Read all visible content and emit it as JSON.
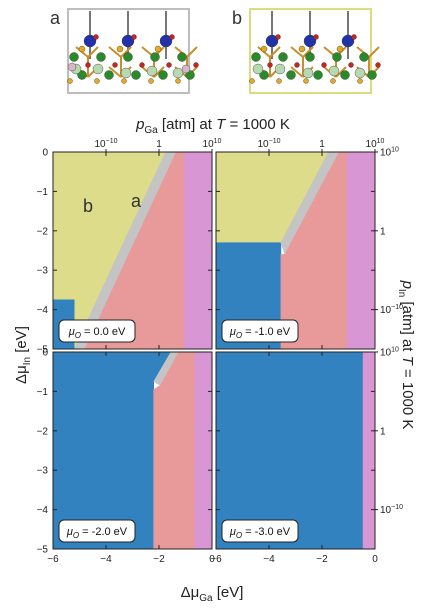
{
  "figure": {
    "inset_labels": [
      "a",
      "b"
    ],
    "region_labels": [
      "b",
      "a"
    ],
    "top_axis_label": {
      "main": "p",
      "sub": "Ga",
      "rest": " [atm] at ",
      "T": "T",
      "tail": " = 1000 K"
    },
    "right_axis_label": {
      "main": "p",
      "sub": "In",
      "rest": " [atm] at ",
      "T": "T",
      "tail": " = 1000 K"
    },
    "left_axis_label": {
      "main": "Δμ",
      "sub": "In",
      "rest": " [eV]"
    },
    "bottom_axis_label": {
      "main": "Δμ",
      "sub": "Ga",
      "rest": " [eV]"
    },
    "top_ticks": [
      {
        "base": "10",
        "exp": "−10",
        "x": -4.0
      },
      {
        "base": "1",
        "exp": "",
        "x": -2.0
      },
      {
        "base": "10",
        "exp": "10",
        "x": 0.0
      }
    ],
    "right_ticks": [
      {
        "base": "10",
        "exp": "10",
        "y": 0.0
      },
      {
        "base": "1",
        "exp": "",
        "y": -2.0
      },
      {
        "base": "10",
        "exp": "−10",
        "y": -4.0
      }
    ]
  },
  "colors": {
    "phase_b": "#dcdc8a",
    "phase_a": "#e89a9a",
    "phase_blue": "#3282c0",
    "phase_grey": "#c4c4c4",
    "phase_pink": "#d896d4"
  },
  "chart_data": {
    "type": "heatmap",
    "xlabel": "ΔμGa [eV]",
    "ylabel": "ΔμIn [eV]",
    "xlim": [
      -6,
      0
    ],
    "ylim": [
      -5,
      0
    ],
    "x_ticks": [
      -6,
      -4,
      -2,
      0
    ],
    "y_ticks": [
      0,
      -1,
      -2,
      -3,
      -4,
      -5
    ],
    "dashed_box": {
      "x": [
        -3.8,
        -1.8
      ],
      "y": [
        -3.8,
        -1.8
      ]
    },
    "panels": [
      {
        "label": "μO = 0.0 eV",
        "label_main": "μ",
        "label_sub": "O",
        "label_value": " = 0.0 eV",
        "regions": [
          {
            "phase": "phase_b",
            "polygon": [
              [
                -6,
                0
              ],
              [
                -1.75,
                0
              ],
              [
                -5.2,
                -5
              ],
              [
                -6,
                -5
              ]
            ]
          },
          {
            "phase": "phase_grey",
            "polygon": [
              [
                -1.75,
                0
              ],
              [
                -1.35,
                0
              ],
              [
                -4.8,
                -5
              ],
              [
                -5.2,
                -5
              ]
            ]
          },
          {
            "phase": "phase_a",
            "polygon": [
              [
                -1.35,
                0
              ],
              [
                -1.05,
                0
              ],
              [
                -1.05,
                -5
              ],
              [
                -4.8,
                -5
              ]
            ]
          },
          {
            "phase": "phase_pink",
            "polygon": [
              [
                -1.05,
                0
              ],
              [
                0,
                0
              ],
              [
                0,
                -5
              ],
              [
                -1.05,
                -5
              ]
            ]
          },
          {
            "phase": "phase_blue",
            "polygon": [
              [
                -6,
                -3.75
              ],
              [
                -5.2,
                -3.75
              ],
              [
                -5.2,
                -5
              ],
              [
                -6,
                -5
              ]
            ]
          }
        ]
      },
      {
        "label": "μO = -1.0 eV",
        "label_main": "μ",
        "label_sub": "O",
        "label_value": " = -1.0 eV",
        "regions": [
          {
            "phase": "phase_b",
            "polygon": [
              [
                -6,
                0
              ],
              [
                -6,
                -2.3
              ],
              [
                -3.55,
                -2.3
              ],
              [
                -1.75,
                0
              ]
            ]
          },
          {
            "phase": "phase_blue",
            "polygon": [
              [
                -6,
                -2.3
              ],
              [
                -3.55,
                -2.3
              ],
              [
                -3.55,
                -5
              ],
              [
                -6,
                -5
              ]
            ]
          },
          {
            "phase": "phase_grey",
            "polygon": [
              [
                -1.75,
                0
              ],
              [
                -1.35,
                0
              ],
              [
                -3.4,
                -2.6
              ],
              [
                -3.55,
                -2.3
              ]
            ]
          },
          {
            "phase": "phase_a",
            "polygon": [
              [
                -1.35,
                0
              ],
              [
                -1.05,
                0
              ],
              [
                -1.05,
                -5
              ],
              [
                -3.55,
                -5
              ],
              [
                -3.55,
                -2.6
              ],
              [
                -3.4,
                -2.6
              ]
            ]
          },
          {
            "phase": "phase_pink",
            "polygon": [
              [
                -1.05,
                0
              ],
              [
                0,
                0
              ],
              [
                0,
                -5
              ],
              [
                -1.05,
                -5
              ]
            ]
          }
        ]
      },
      {
        "label": "μO = -2.0 eV",
        "label_main": "μ",
        "label_sub": "O",
        "label_value": " = -2.0 eV",
        "regions": [
          {
            "phase": "phase_blue",
            "polygon": [
              [
                -6,
                0
              ],
              [
                -6,
                -5
              ],
              [
                -2.2,
                -5
              ],
              [
                -2.2,
                -0.75
              ],
              [
                -1.55,
                0
              ]
            ]
          },
          {
            "phase": "phase_grey",
            "polygon": [
              [
                -1.55,
                0
              ],
              [
                -1.25,
                0
              ],
              [
                -1.95,
                -0.85
              ],
              [
                -2.2,
                -0.75
              ]
            ]
          },
          {
            "phase": "phase_a",
            "polygon": [
              [
                -1.25,
                0
              ],
              [
                -0.65,
                0
              ],
              [
                -0.65,
                -5
              ],
              [
                -2.2,
                -5
              ],
              [
                -2.2,
                -0.95
              ],
              [
                -1.95,
                -0.85
              ]
            ]
          },
          {
            "phase": "phase_pink",
            "polygon": [
              [
                -0.65,
                0
              ],
              [
                0,
                0
              ],
              [
                0,
                -5
              ],
              [
                -0.65,
                -5
              ]
            ]
          }
        ]
      },
      {
        "label": "μO = -3.0 eV",
        "label_main": "μ",
        "label_sub": "O",
        "label_value": " = -3.0 eV",
        "regions": [
          {
            "phase": "phase_blue",
            "polygon": [
              [
                -6,
                0
              ],
              [
                -0.45,
                0
              ],
              [
                -0.45,
                -5
              ],
              [
                -6,
                -5
              ]
            ]
          },
          {
            "phase": "phase_pink",
            "polygon": [
              [
                -0.45,
                0
              ],
              [
                0,
                0
              ],
              [
                0,
                -5
              ],
              [
                -0.45,
                -5
              ]
            ]
          }
        ]
      }
    ]
  }
}
